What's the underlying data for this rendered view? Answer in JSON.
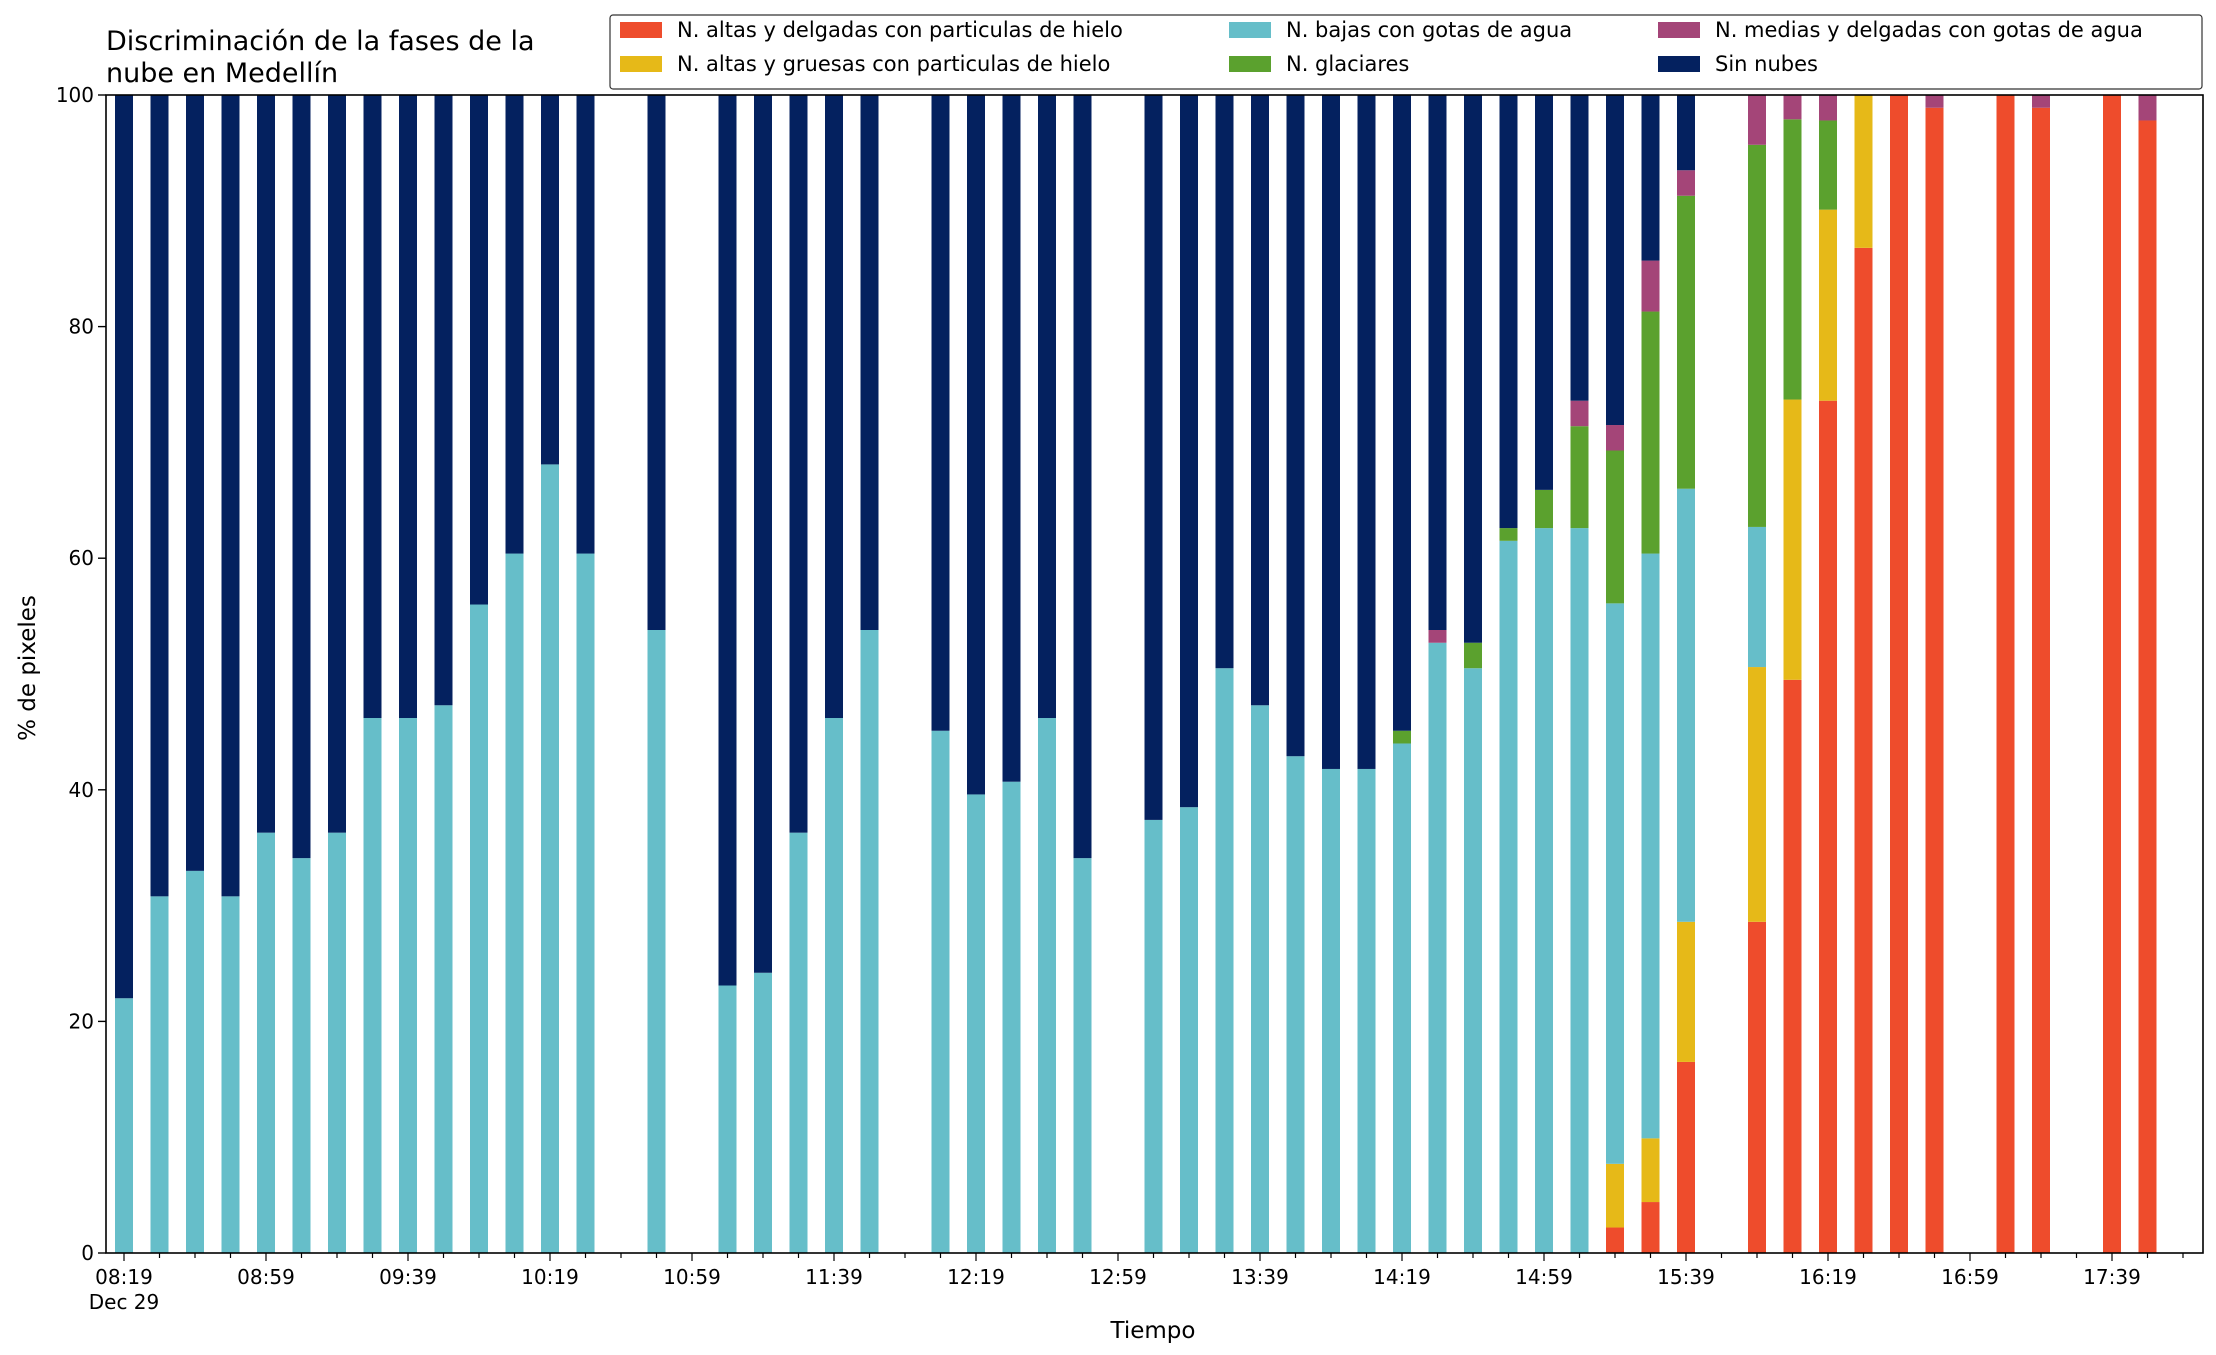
{
  "chart_data": {
    "type": "bar",
    "stacked": true,
    "title": "Discriminación de la fases de la\nnube en Medellín",
    "xlabel": "Tiempo",
    "ylabel": "% de pixeles",
    "ylim": [
      0,
      100
    ],
    "yticks": [
      0,
      20,
      40,
      60,
      80,
      100
    ],
    "xticks": [
      {
        "label": "08:19",
        "sublabel": "Dec 29",
        "slot": 0
      },
      {
        "label": "08:59",
        "sublabel": "",
        "slot": 4
      },
      {
        "label": "09:39",
        "sublabel": "",
        "slot": 8
      },
      {
        "label": "10:19",
        "sublabel": "",
        "slot": 12
      },
      {
        "label": "10:59",
        "sublabel": "",
        "slot": 16
      },
      {
        "label": "11:39",
        "sublabel": "",
        "slot": 20
      },
      {
        "label": "12:19",
        "sublabel": "",
        "slot": 24
      },
      {
        "label": "12:59",
        "sublabel": "",
        "slot": 28
      },
      {
        "label": "13:39",
        "sublabel": "",
        "slot": 32
      },
      {
        "label": "14:19",
        "sublabel": "",
        "slot": 36
      },
      {
        "label": "14:59",
        "sublabel": "",
        "slot": 40
      },
      {
        "label": "15:39",
        "sublabel": "",
        "slot": 44
      },
      {
        "label": "16:19",
        "sublabel": "",
        "slot": 48
      },
      {
        "label": "16:59",
        "sublabel": "",
        "slot": 52
      },
      {
        "label": "17:39",
        "sublabel": "",
        "slot": 56
      }
    ],
    "slots": 59,
    "grid": false,
    "legend_position": "top-right",
    "series": [
      {
        "key": "altas_delgadas",
        "name": "N. altas y delgadas con particulas de hielo",
        "color": "#ee4c2c"
      },
      {
        "key": "altas_gruesas",
        "name": "N. altas y gruesas con particulas de hielo",
        "color": "#e6b918"
      },
      {
        "key": "bajas",
        "name": "N. bajas con gotas de agua",
        "color": "#66bec9"
      },
      {
        "key": "glaciares",
        "name": "N. glaciares",
        "color": "#5ba12e"
      },
      {
        "key": "medias",
        "name": "N. medias y delgadas con gotas de agua",
        "color": "#a44578"
      },
      {
        "key": "sin_nubes",
        "name": "Sin nubes",
        "color": "#04215f"
      }
    ],
    "stack_order": [
      "altas_delgadas",
      "altas_gruesas",
      "bajas",
      "glaciares",
      "medias",
      "sin_nubes"
    ],
    "bars": [
      {
        "slot": 0,
        "values": [
          0,
          0,
          22,
          0,
          0,
          78
        ]
      },
      {
        "slot": 1,
        "values": [
          0,
          0,
          30.8,
          0,
          0,
          69.2
        ]
      },
      {
        "slot": 2,
        "values": [
          0,
          0,
          33,
          0,
          0,
          67
        ]
      },
      {
        "slot": 3,
        "values": [
          0,
          0,
          30.8,
          0,
          0,
          69.2
        ]
      },
      {
        "slot": 4,
        "values": [
          0,
          0,
          36.3,
          0,
          0,
          63.7
        ]
      },
      {
        "slot": 5,
        "values": [
          0,
          0,
          34.1,
          0,
          0,
          65.9
        ]
      },
      {
        "slot": 6,
        "values": [
          0,
          0,
          36.3,
          0,
          0,
          63.7
        ]
      },
      {
        "slot": 7,
        "values": [
          0,
          0,
          46.2,
          0,
          0,
          53.8
        ]
      },
      {
        "slot": 8,
        "values": [
          0,
          0,
          46.2,
          0,
          0,
          53.8
        ]
      },
      {
        "slot": 9,
        "values": [
          0,
          0,
          47.3,
          0,
          0,
          52.7
        ]
      },
      {
        "slot": 10,
        "values": [
          0,
          0,
          56,
          0,
          0,
          44
        ]
      },
      {
        "slot": 11,
        "values": [
          0,
          0,
          60.4,
          0,
          0,
          39.6
        ]
      },
      {
        "slot": 12,
        "values": [
          0,
          0,
          68.1,
          0,
          0,
          31.9
        ]
      },
      {
        "slot": 13,
        "values": [
          0,
          0,
          60.4,
          0,
          0,
          39.6
        ]
      },
      {
        "slot": 15,
        "values": [
          0,
          0,
          53.8,
          0,
          0,
          46.2
        ]
      },
      {
        "slot": 17,
        "values": [
          0,
          0,
          23.1,
          0,
          0,
          76.9
        ]
      },
      {
        "slot": 18,
        "values": [
          0,
          0,
          24.2,
          0,
          0,
          75.8
        ]
      },
      {
        "slot": 19,
        "values": [
          0,
          0,
          36.3,
          0,
          0,
          63.7
        ]
      },
      {
        "slot": 20,
        "values": [
          0,
          0,
          46.2,
          0,
          0,
          53.8
        ]
      },
      {
        "slot": 21,
        "values": [
          0,
          0,
          53.8,
          0,
          0,
          46.2
        ]
      },
      {
        "slot": 23,
        "values": [
          0,
          0,
          45.1,
          0,
          0,
          54.9
        ]
      },
      {
        "slot": 24,
        "values": [
          0,
          0,
          39.6,
          0,
          0,
          60.4
        ]
      },
      {
        "slot": 25,
        "values": [
          0,
          0,
          40.7,
          0,
          0,
          59.3
        ]
      },
      {
        "slot": 26,
        "values": [
          0,
          0,
          46.2,
          0,
          0,
          53.8
        ]
      },
      {
        "slot": 27,
        "values": [
          0,
          0,
          34.1,
          0,
          0,
          65.9
        ]
      },
      {
        "slot": 29,
        "values": [
          0,
          0,
          37.4,
          0,
          0,
          62.6
        ]
      },
      {
        "slot": 30,
        "values": [
          0,
          0,
          38.5,
          0,
          0,
          61.5
        ]
      },
      {
        "slot": 31,
        "values": [
          0,
          0,
          50.5,
          0,
          0,
          49.5
        ]
      },
      {
        "slot": 32,
        "values": [
          0,
          0,
          47.3,
          0,
          0,
          52.7
        ]
      },
      {
        "slot": 33,
        "values": [
          0,
          0,
          42.9,
          0,
          0,
          57.1
        ]
      },
      {
        "slot": 34,
        "values": [
          0,
          0,
          41.8,
          0,
          0,
          58.2
        ]
      },
      {
        "slot": 35,
        "values": [
          0,
          0,
          41.8,
          0,
          0,
          58.2
        ]
      },
      {
        "slot": 36,
        "values": [
          0,
          0,
          44,
          1.1,
          0,
          54.9
        ]
      },
      {
        "slot": 37,
        "values": [
          0,
          0,
          52.7,
          0,
          1.1,
          46.2
        ]
      },
      {
        "slot": 38,
        "values": [
          0,
          0,
          50.5,
          2.2,
          0,
          47.3
        ]
      },
      {
        "slot": 39,
        "values": [
          0,
          0,
          61.5,
          1.1,
          0,
          37.4
        ]
      },
      {
        "slot": 40,
        "values": [
          0,
          0,
          62.6,
          3.3,
          0,
          34.1
        ]
      },
      {
        "slot": 41,
        "values": [
          0,
          0,
          62.6,
          8.8,
          2.2,
          26.4
        ]
      },
      {
        "slot": 42,
        "values": [
          2.2,
          5.5,
          48.4,
          13.2,
          2.2,
          28.5
        ]
      },
      {
        "slot": 43,
        "values": [
          4.4,
          5.5,
          50.5,
          20.9,
          4.4,
          14.3
        ]
      },
      {
        "slot": 44,
        "values": [
          16.5,
          12.1,
          37.4,
          25.3,
          2.2,
          6.5
        ]
      },
      {
        "slot": 46,
        "values": [
          28.6,
          22,
          12.1,
          33,
          4.3,
          0
        ]
      },
      {
        "slot": 47,
        "values": [
          49.5,
          24.2,
          0,
          24.2,
          2.1,
          0
        ]
      },
      {
        "slot": 48,
        "values": [
          73.6,
          16.5,
          0,
          7.7,
          2.2,
          0
        ]
      },
      {
        "slot": 49,
        "values": [
          86.8,
          13.2,
          0,
          0,
          0,
          0
        ]
      },
      {
        "slot": 50,
        "values": [
          100,
          0,
          0,
          0,
          0,
          0
        ]
      },
      {
        "slot": 51,
        "values": [
          98.9,
          0,
          0,
          0,
          1.1,
          0
        ]
      },
      {
        "slot": 53,
        "values": [
          100,
          0,
          0,
          0,
          0,
          0
        ]
      },
      {
        "slot": 54,
        "values": [
          98.9,
          0,
          0,
          0,
          1.1,
          0
        ]
      },
      {
        "slot": 56,
        "values": [
          100,
          0,
          0,
          0,
          0,
          0
        ]
      },
      {
        "slot": 57,
        "values": [
          97.8,
          0,
          0,
          0,
          2.2,
          0
        ]
      }
    ]
  }
}
